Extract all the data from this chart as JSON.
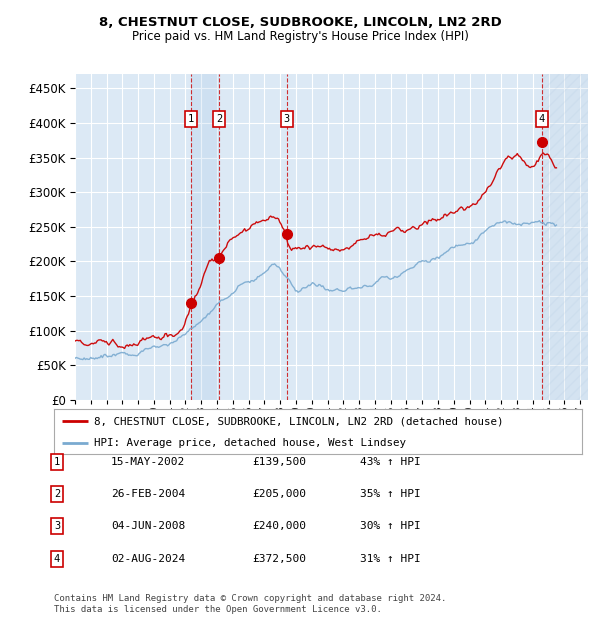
{
  "title1": "8, CHESTNUT CLOSE, SUDBROOKE, LINCOLN, LN2 2RD",
  "title2": "Price paid vs. HM Land Registry's House Price Index (HPI)",
  "ytick_values": [
    0,
    50000,
    100000,
    150000,
    200000,
    250000,
    300000,
    350000,
    400000,
    450000
  ],
  "ylim": [
    0,
    470000
  ],
  "xlim_start": 1995.0,
  "xlim_end": 2027.5,
  "background_color": "#dce9f5",
  "red_line_color": "#cc0000",
  "blue_line_color": "#7aaad0",
  "transactions": [
    {
      "label": "1",
      "date_num": 2002.37,
      "price": 139500,
      "pct": "43% ↑ HPI",
      "date_str": "15-MAY-2002"
    },
    {
      "label": "2",
      "date_num": 2004.15,
      "price": 205000,
      "pct": "35% ↑ HPI",
      "date_str": "26-FEB-2004"
    },
    {
      "label": "3",
      "date_num": 2008.42,
      "price": 240000,
      "pct": "30% ↑ HPI",
      "date_str": "04-JUN-2008"
    },
    {
      "label": "4",
      "date_num": 2024.58,
      "price": 372500,
      "pct": "31% ↑ HPI",
      "date_str": "02-AUG-2024"
    }
  ],
  "legend_line1": "8, CHESTNUT CLOSE, SUDBROOKE, LINCOLN, LN2 2RD (detached house)",
  "legend_line2": "HPI: Average price, detached house, West Lindsey",
  "footer1": "Contains HM Land Registry data © Crown copyright and database right 2024.",
  "footer2": "This data is licensed under the Open Government Licence v3.0."
}
